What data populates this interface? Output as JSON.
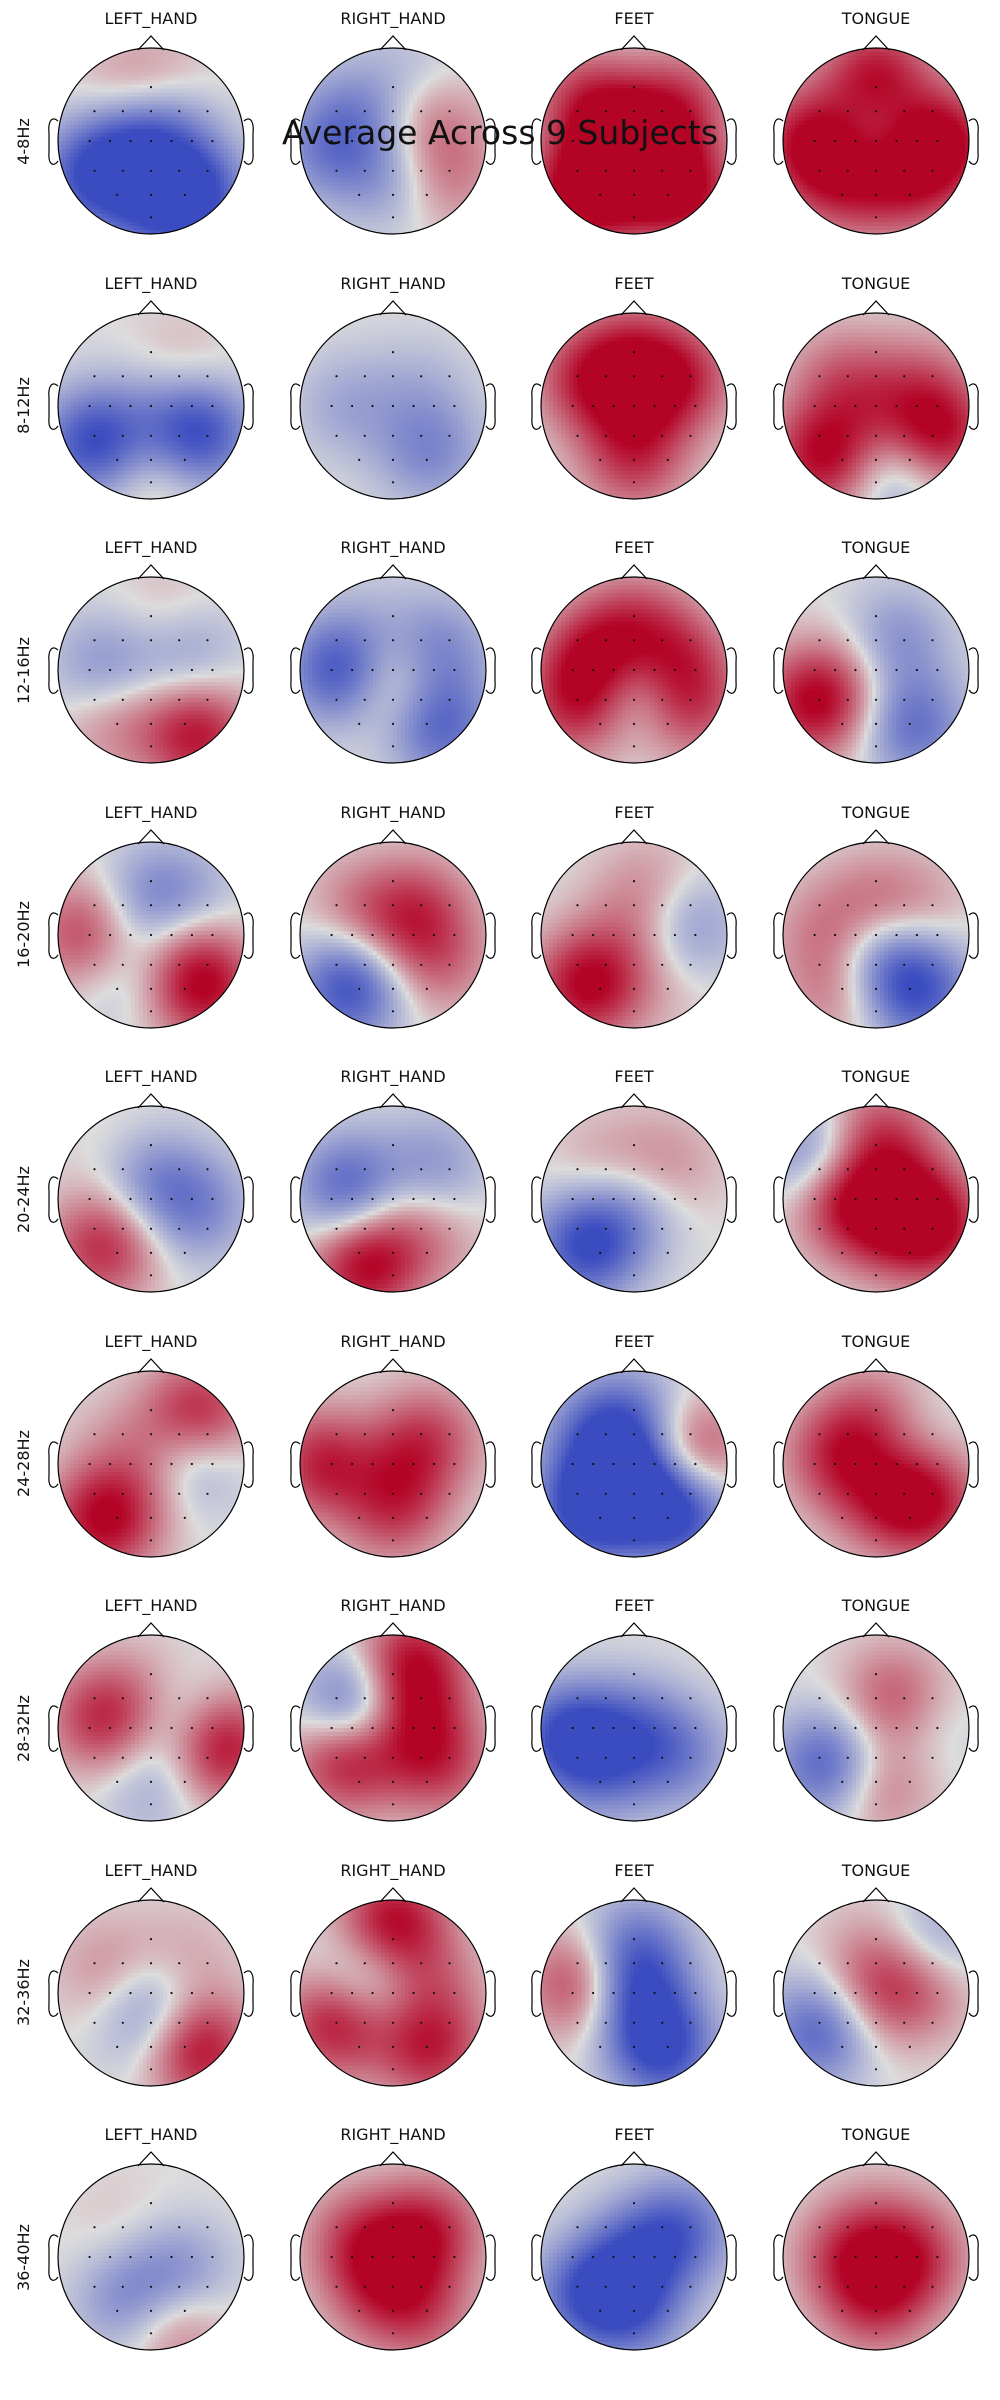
{
  "figure": {
    "title": "Average Across 9 Subjects",
    "classes": [
      "LEFT_HAND",
      "RIGHT_HAND",
      "FEET",
      "TONGUE"
    ],
    "bands": [
      "4-8Hz",
      "8-12Hz",
      "12-16Hz",
      "16-20Hz",
      "20-24Hz",
      "24-28Hz",
      "28-32Hz",
      "32-36Hz",
      "36-40Hz"
    ],
    "colormap": {
      "low": "#3b4cc0",
      "mid": "#dddddd",
      "high": "#b40426"
    },
    "maps": [
      [
        {
          "spots": [
            [
              -0.3,
              0.0,
              -0.6
            ],
            [
              0.0,
              0.3,
              -0.5
            ],
            [
              0.45,
              -0.6,
              -1.0
            ],
            [
              0.0,
              -0.7,
              -0.5
            ],
            [
              -0.65,
              -0.4,
              -0.8
            ],
            [
              0.2,
              0.0,
              -0.3
            ],
            [
              -0.25,
              0.4,
              0.5
            ],
            [
              0.1,
              0.6,
              0.3
            ]
          ]
        },
        {
          "spots": [
            [
              0.4,
              0.2,
              0.4
            ],
            [
              0.55,
              -0.4,
              0.4
            ],
            [
              -0.4,
              0.3,
              -0.4
            ],
            [
              0.0,
              -0.4,
              -0.4
            ],
            [
              -0.7,
              -0.1,
              -0.5
            ],
            [
              0.2,
              0.7,
              -0.2
            ]
          ]
        },
        {
          "spots": [
            [
              0.0,
              0.0,
              0.7
            ],
            [
              -0.6,
              -0.6,
              1.0
            ],
            [
              0.6,
              -0.6,
              0.8
            ],
            [
              -0.5,
              0.4,
              0.7
            ],
            [
              0.5,
              0.4,
              0.6
            ],
            [
              0.0,
              -0.3,
              1.0
            ]
          ]
        },
        {
          "spots": [
            [
              0.0,
              0.0,
              -0.3
            ],
            [
              -0.7,
              0.0,
              0.9
            ],
            [
              0.7,
              0.0,
              1.0
            ],
            [
              0.0,
              0.7,
              0.9
            ],
            [
              0.0,
              -0.5,
              0.3
            ],
            [
              -0.4,
              -0.4,
              0.6
            ],
            [
              0.4,
              -0.4,
              0.6
            ]
          ]
        }
      ],
      [
        {
          "spots": [
            [
              -0.6,
              -0.4,
              -1.0
            ],
            [
              0.5,
              -0.3,
              -1.0
            ],
            [
              0.0,
              -0.7,
              0.3
            ],
            [
              0.0,
              0.0,
              -0.2
            ],
            [
              0.3,
              0.4,
              0.2
            ]
          ]
        },
        {
          "spots": [
            [
              0.0,
              0.0,
              0.0
            ],
            [
              -0.5,
              0.0,
              -0.3
            ],
            [
              0.4,
              -0.5,
              -0.5
            ],
            [
              0.3,
              0.2,
              -0.2
            ]
          ]
        },
        {
          "spots": [
            [
              0.0,
              0.0,
              0.5
            ],
            [
              -0.5,
              0.3,
              0.7
            ],
            [
              0.5,
              0.3,
              0.7
            ],
            [
              0.0,
              -0.6,
              0.6
            ],
            [
              0.0,
              0.6,
              0.5
            ]
          ]
        },
        {
          "spots": [
            [
              -0.55,
              -0.55,
              1.0
            ],
            [
              0.65,
              -0.3,
              1.0
            ],
            [
              0.2,
              -0.7,
              -0.5
            ],
            [
              0.0,
              0.0,
              0.3
            ],
            [
              -0.4,
              0.3,
              0.4
            ],
            [
              0.5,
              0.3,
              0.3
            ]
          ]
        }
      ],
      [
        {
          "spots": [
            [
              -0.5,
              0.0,
              -0.5
            ],
            [
              0.4,
              0.2,
              -0.4
            ],
            [
              0.5,
              -0.7,
              0.9
            ],
            [
              -0.4,
              -0.5,
              0.4
            ],
            [
              0.0,
              0.0,
              0.0
            ],
            [
              0.2,
              0.6,
              0.2
            ]
          ]
        },
        {
          "spots": [
            [
              -0.55,
              0.0,
              -1.0
            ],
            [
              0.45,
              0.2,
              -0.6
            ],
            [
              0.0,
              -0.1,
              0.6
            ],
            [
              0.5,
              -0.6,
              -0.8
            ],
            [
              -0.2,
              0.6,
              -0.1
            ]
          ]
        },
        {
          "spots": [
            [
              -0.4,
              0.1,
              1.0
            ],
            [
              0.4,
              0.1,
              0.8
            ],
            [
              0.0,
              -0.1,
              -0.8
            ],
            [
              0.0,
              0.5,
              0.5
            ],
            [
              -0.6,
              -0.4,
              0.7
            ],
            [
              0.6,
              -0.4,
              0.6
            ]
          ]
        },
        {
          "spots": [
            [
              -0.65,
              -0.35,
              1.0
            ],
            [
              0.4,
              -0.6,
              -0.7
            ],
            [
              0.2,
              0.3,
              -0.5
            ],
            [
              -0.2,
              0.0,
              0.2
            ],
            [
              0.6,
              0.0,
              0.0
            ]
          ]
        }
      ],
      [
        {
          "spots": [
            [
              -0.7,
              0.0,
              0.7
            ],
            [
              0.55,
              -0.55,
              1.0
            ],
            [
              0.0,
              0.35,
              -0.5
            ],
            [
              0.3,
              0.0,
              0.3
            ],
            [
              -0.3,
              -0.4,
              -0.3
            ],
            [
              0.4,
              0.4,
              -0.3
            ]
          ]
        },
        {
          "spots": [
            [
              -0.45,
              -0.55,
              -1.0
            ],
            [
              0.3,
              0.3,
              0.5
            ],
            [
              0.0,
              0.0,
              0.3
            ],
            [
              0.5,
              -0.3,
              0.4
            ],
            [
              -0.4,
              0.3,
              0.3
            ]
          ]
        },
        {
          "spots": [
            [
              -0.5,
              -0.55,
              1.0
            ],
            [
              0.55,
              0.1,
              -0.5
            ],
            [
              0.0,
              0.0,
              0.3
            ],
            [
              0.2,
              0.5,
              0.3
            ],
            [
              0.4,
              -0.6,
              0.1
            ]
          ]
        },
        {
          "spots": [
            [
              0.0,
              -0.2,
              -0.6
            ],
            [
              0.45,
              -0.6,
              -0.9
            ],
            [
              0.0,
              0.3,
              0.4
            ],
            [
              -0.5,
              0.0,
              0.4
            ],
            [
              0.5,
              0.3,
              0.2
            ],
            [
              -0.4,
              -0.6,
              0.4
            ]
          ]
        }
      ],
      [
        {
          "spots": [
            [
              0.0,
              0.2,
              -0.5
            ],
            [
              -0.5,
              -0.5,
              0.8
            ],
            [
              0.5,
              -0.1,
              -0.5
            ],
            [
              -0.3,
              0.5,
              0.1
            ],
            [
              0.3,
              -0.5,
              0.0
            ]
          ]
        },
        {
          "spots": [
            [
              -0.45,
              0.1,
              -0.9
            ],
            [
              -0.3,
              -0.7,
              1.0
            ],
            [
              0.4,
              0.3,
              -0.5
            ],
            [
              0.0,
              0.0,
              0.3
            ],
            [
              0.4,
              -0.4,
              0.3
            ]
          ]
        },
        {
          "spots": [
            [
              -0.5,
              -0.5,
              -1.0
            ],
            [
              0.0,
              0.0,
              -0.5
            ],
            [
              0.3,
              0.3,
              0.4
            ],
            [
              -0.3,
              0.3,
              0.3
            ],
            [
              0.5,
              -0.4,
              0.0
            ]
          ]
        },
        {
          "spots": [
            [
              -0.4,
              0.1,
              1.0
            ],
            [
              0.6,
              -0.3,
              1.0
            ],
            [
              -0.6,
              0.4,
              -0.9
            ],
            [
              0.0,
              0.7,
              0.6
            ],
            [
              0.0,
              -0.3,
              0.5
            ],
            [
              0.3,
              0.2,
              0.4
            ]
          ]
        }
      ],
      [
        {
          "spots": [
            [
              -0.5,
              -0.6,
              1.0
            ],
            [
              0.5,
              0.5,
              1.0
            ],
            [
              0.4,
              0.1,
              -0.7
            ],
            [
              0.0,
              0.0,
              0.4
            ],
            [
              -0.4,
              0.3,
              0.1
            ]
          ]
        },
        {
          "spots": [
            [
              -0.7,
              0.0,
              1.0
            ],
            [
              -0.3,
              0.0,
              -0.5
            ],
            [
              0.0,
              0.0,
              0.6
            ],
            [
              0.4,
              0.3,
              0.5
            ],
            [
              0.0,
              -0.5,
              0.6
            ]
          ]
        },
        {
          "spots": [
            [
              0.0,
              -0.2,
              -1.0
            ],
            [
              -0.5,
              -0.5,
              -1.0
            ],
            [
              0.5,
              -0.5,
              -1.0
            ],
            [
              0.6,
              0.1,
              0.8
            ],
            [
              0.0,
              0.5,
              -0.5
            ],
            [
              -0.4,
              0.3,
              -0.6
            ]
          ]
        },
        {
          "spots": [
            [
              0.5,
              -0.4,
              1.0
            ],
            [
              -0.4,
              0.1,
              0.7
            ],
            [
              0.0,
              0.5,
              0.5
            ],
            [
              0.0,
              -0.4,
              0.4
            ],
            [
              0.3,
              0.3,
              -0.2
            ]
          ]
        }
      ],
      [
        {
          "spots": [
            [
              -0.5,
              0.1,
              0.8
            ],
            [
              0.75,
              -0.2,
              1.0
            ],
            [
              0.3,
              0.1,
              -0.4
            ],
            [
              0.0,
              -0.6,
              -0.3
            ],
            [
              0.0,
              0.4,
              0.2
            ]
          ]
        },
        {
          "spots": [
            [
              -0.5,
              -0.3,
              1.0
            ],
            [
              -0.4,
              0.2,
              -1.0
            ],
            [
              0.2,
              0.1,
              0.7
            ],
            [
              0.2,
              0.7,
              0.9
            ],
            [
              0.5,
              -0.4,
              0.6
            ]
          ]
        },
        {
          "spots": [
            [
              -0.7,
              -0.1,
              -1.0
            ],
            [
              0.0,
              0.0,
              -0.5
            ],
            [
              0.5,
              -0.3,
              -0.5
            ],
            [
              -0.3,
              -0.5,
              -0.4
            ]
          ]
        },
        {
          "spots": [
            [
              -0.5,
              -0.4,
              -0.9
            ],
            [
              0.2,
              0.3,
              0.6
            ],
            [
              0.0,
              -0.6,
              0.5
            ],
            [
              0.5,
              0.0,
              -0.2
            ],
            [
              -0.3,
              0.2,
              0.0
            ]
          ]
        }
      ],
      [
        {
          "spots": [
            [
              0.5,
              -0.6,
              1.0
            ],
            [
              0.0,
              0.0,
              -0.5
            ],
            [
              -0.4,
              0.2,
              0.4
            ],
            [
              0.3,
              0.3,
              0.3
            ],
            [
              0.0,
              -0.4,
              -0.3
            ]
          ]
        },
        {
          "spots": [
            [
              0.0,
              0.75,
              1.0
            ],
            [
              -0.6,
              -0.3,
              1.0
            ],
            [
              0.4,
              -0.6,
              0.8
            ],
            [
              -0.3,
              0.1,
              -0.6
            ],
            [
              0.4,
              0.1,
              0.4
            ]
          ]
        },
        {
          "spots": [
            [
              -0.55,
              0.1,
              0.8
            ],
            [
              0.3,
              -0.6,
              -1.0
            ],
            [
              0.0,
              0.0,
              -0.8
            ],
            [
              0.0,
              0.5,
              -0.6
            ]
          ]
        },
        {
          "spots": [
            [
              -0.6,
              -0.4,
              -0.8
            ],
            [
              0.0,
              0.0,
              0.5
            ],
            [
              0.5,
              0.1,
              0.5
            ],
            [
              0.0,
              0.5,
              0.2
            ],
            [
              0.6,
              0.5,
              -0.5
            ]
          ]
        }
      ],
      [
        {
          "spots": [
            [
              -0.2,
              -0.5,
              -0.6
            ],
            [
              0.3,
              -0.2,
              -0.5
            ],
            [
              0.2,
              -0.7,
              0.6
            ],
            [
              -0.3,
              0.3,
              0.1
            ],
            [
              0.0,
              0.0,
              0.0
            ]
          ]
        },
        {
          "spots": [
            [
              0.0,
              0.0,
              0.4
            ],
            [
              -0.4,
              0.2,
              0.5
            ],
            [
              0.4,
              0.3,
              0.7
            ],
            [
              0.3,
              -0.6,
              0.5
            ],
            [
              -0.2,
              -0.4,
              0.4
            ]
          ]
        },
        {
          "spots": [
            [
              0.0,
              0.0,
              -0.6
            ],
            [
              -0.5,
              -0.4,
              -0.8
            ],
            [
              0.5,
              0.3,
              -0.7
            ],
            [
              0.0,
              -0.6,
              -0.6
            ]
          ]
        },
        {
          "spots": [
            [
              -0.3,
              0.0,
              0.6
            ],
            [
              0.4,
              0.0,
              0.7
            ],
            [
              0.0,
              -0.5,
              0.6
            ],
            [
              0.0,
              0.4,
              0.2
            ],
            [
              0.0,
              -0.1,
              0.0
            ]
          ]
        }
      ]
    ]
  }
}
